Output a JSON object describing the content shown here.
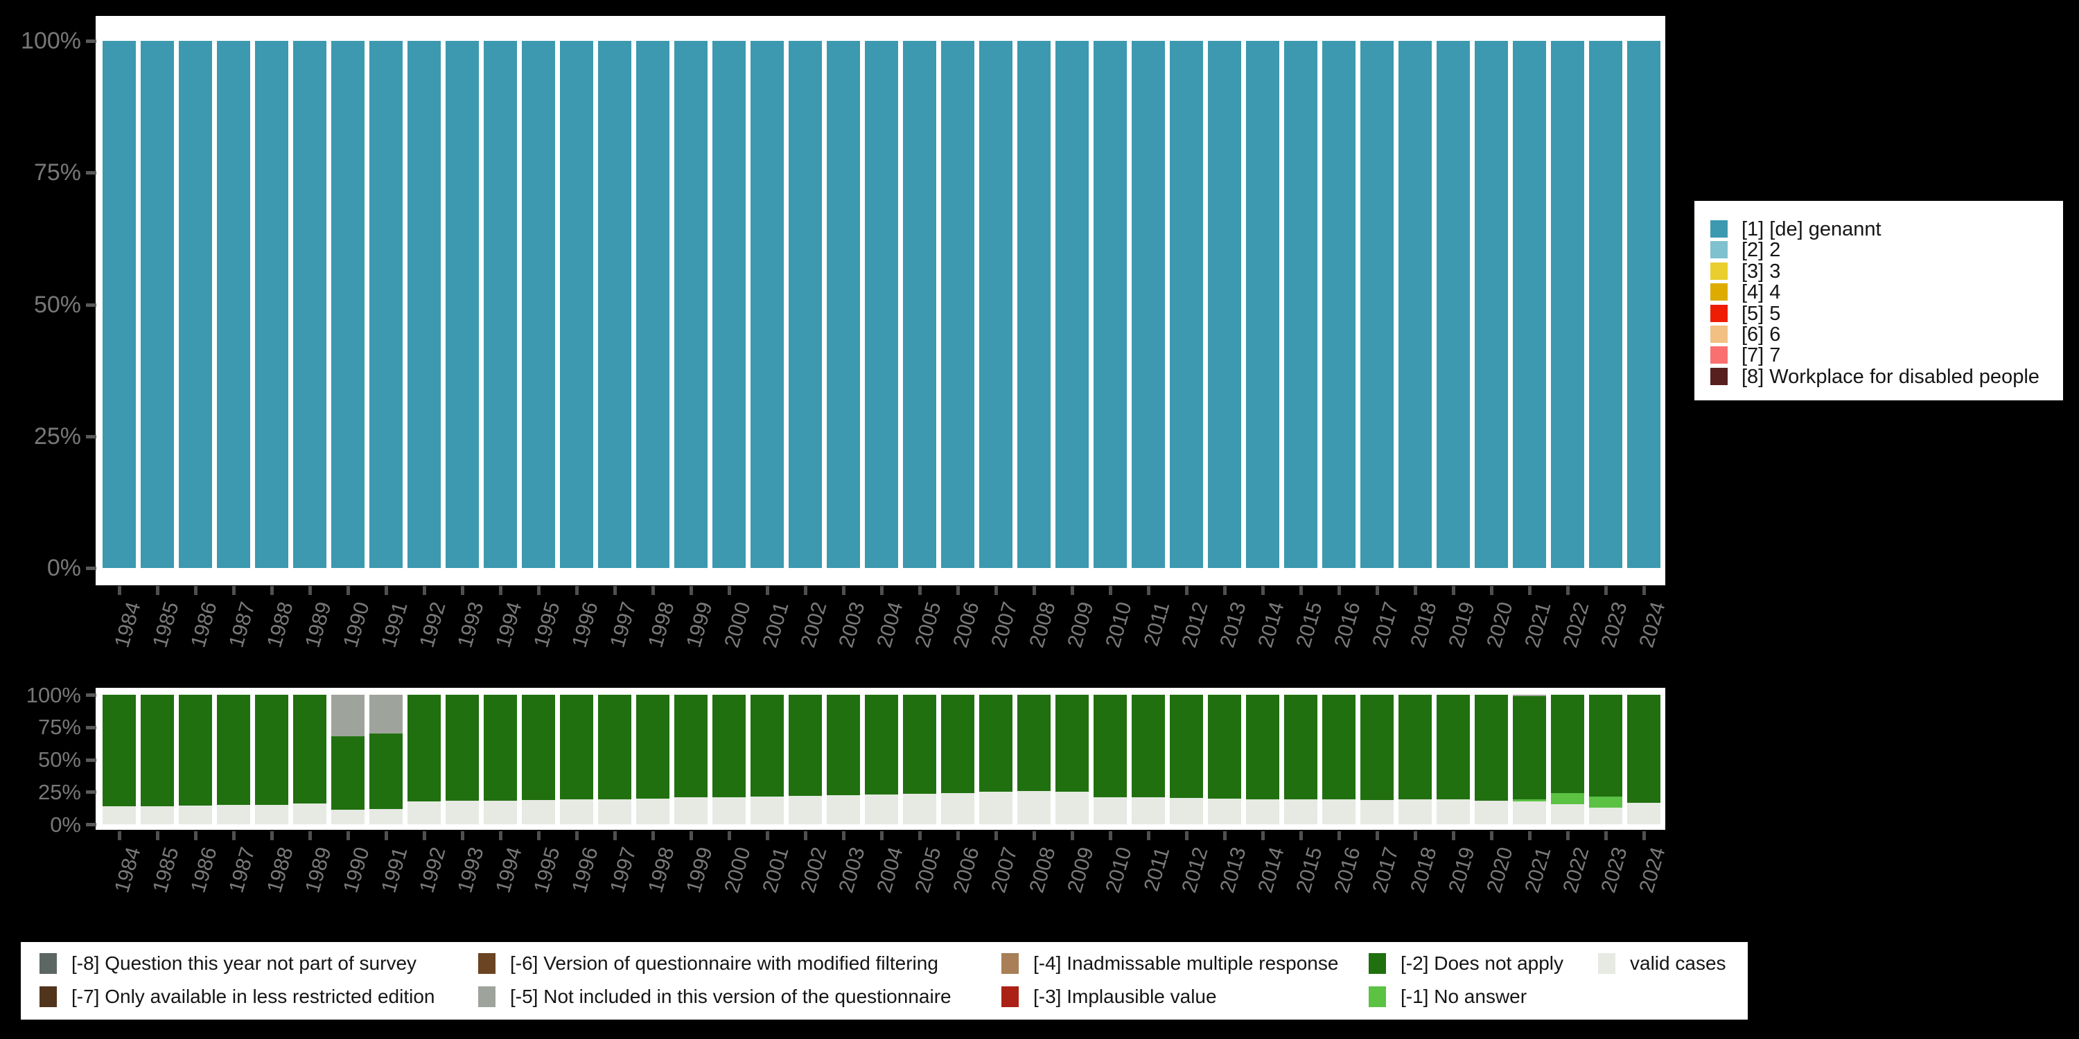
{
  "figure": {
    "background_color": "#000000",
    "plot_background_color": "#ffffff",
    "axis_text_color": "#7a7a7a"
  },
  "years": [
    "1984",
    "1985",
    "1986",
    "1987",
    "1988",
    "1989",
    "1990",
    "1991",
    "1992",
    "1993",
    "1994",
    "1995",
    "1996",
    "1997",
    "1998",
    "1999",
    "2000",
    "2001",
    "2002",
    "2003",
    "2004",
    "2005",
    "2006",
    "2007",
    "2008",
    "2009",
    "2010",
    "2011",
    "2012",
    "2013",
    "2014",
    "2015",
    "2016",
    "2017",
    "2018",
    "2019",
    "2020",
    "2021",
    "2022",
    "2023",
    "2024"
  ],
  "y_axis_ticks": [
    "0%",
    "25%",
    "50%",
    "75%",
    "100%"
  ],
  "legend_values": {
    "items": [
      {
        "label": "[1] [de] genannt",
        "color": "#3C99AF"
      },
      {
        "label": "[2] 2",
        "color": "#7FC1CF"
      },
      {
        "label": "[3] 3",
        "color": "#E9CE2D"
      },
      {
        "label": "[4] 4",
        "color": "#DCAC00"
      },
      {
        "label": "[5] 5",
        "color": "#EE1D04"
      },
      {
        "label": "[6] 6",
        "color": "#F2C083"
      },
      {
        "label": "[7] 7",
        "color": "#FA6F6F"
      },
      {
        "label": "[8] Workplace for disabled people",
        "color": "#571F1D"
      }
    ]
  },
  "legend_missing": {
    "items": [
      {
        "label": "[-8] Question this year not part of survey",
        "color": "#5C6763",
        "col": 0,
        "row": 0
      },
      {
        "label": "[-7] Only available in less restricted edition",
        "color": "#50341B",
        "col": 0,
        "row": 1
      },
      {
        "label": "[-6] Version of questionnaire with modified filtering",
        "color": "#6B4423",
        "col": 1,
        "row": 0
      },
      {
        "label": "[-5] Not included in this version of the questionnaire",
        "color": "#9EA49B",
        "col": 1,
        "row": 1
      },
      {
        "label": "[-4] Inadmissable multiple response",
        "color": "#A87F56",
        "col": 2,
        "row": 0
      },
      {
        "label": "[-3] Implausible value",
        "color": "#AB2115",
        "col": 2,
        "row": 1
      },
      {
        "label": "[-2] Does not apply",
        "color": "#20700F",
        "col": 3,
        "row": 0
      },
      {
        "label": "[-1] No answer",
        "color": "#5BC244",
        "col": 3,
        "row": 1
      },
      {
        "label": "valid cases",
        "color": "#E6EAE3",
        "col": 4,
        "row": 0
      }
    ]
  },
  "chart_data": [
    {
      "type": "bar",
      "subtype": "stacked-100pct",
      "title": "Distribution of valid values per year",
      "xlabel": "",
      "ylabel": "",
      "ylim": [
        0,
        100
      ],
      "y_ticks": [
        "0%",
        "25%",
        "50%",
        "75%",
        "100%"
      ],
      "grid": false,
      "legend_position": "right",
      "categories": [
        "1984",
        "1985",
        "1986",
        "1987",
        "1988",
        "1989",
        "1990",
        "1991",
        "1992",
        "1993",
        "1994",
        "1995",
        "1996",
        "1997",
        "1998",
        "1999",
        "2000",
        "2001",
        "2002",
        "2003",
        "2004",
        "2005",
        "2006",
        "2007",
        "2008",
        "2009",
        "2010",
        "2011",
        "2012",
        "2013",
        "2014",
        "2015",
        "2016",
        "2017",
        "2018",
        "2019",
        "2020",
        "2021",
        "2022",
        "2023",
        "2024"
      ],
      "series": [
        {
          "name": "[1] [de] genannt",
          "color": "#3C99AF",
          "values": [
            100,
            100,
            100,
            100,
            100,
            100,
            100,
            100,
            100,
            100,
            100,
            100,
            100,
            100,
            100,
            100,
            100,
            100,
            100,
            100,
            100,
            100,
            100,
            100,
            100,
            100,
            100,
            100,
            100,
            100,
            100,
            100,
            100,
            100,
            100,
            100,
            100,
            100,
            100,
            100,
            100
          ]
        }
      ]
    },
    {
      "type": "bar",
      "subtype": "stacked-100pct",
      "title": "Distribution of missing values and valid cases per year",
      "xlabel": "",
      "ylabel": "",
      "ylim": [
        0,
        100
      ],
      "y_ticks": [
        "0%",
        "25%",
        "50%",
        "75%",
        "100%"
      ],
      "grid": false,
      "legend_position": "bottom",
      "stack_order": "bottom-to-top",
      "categories": [
        "1984",
        "1985",
        "1986",
        "1987",
        "1988",
        "1989",
        "1990",
        "1991",
        "1992",
        "1993",
        "1994",
        "1995",
        "1996",
        "1997",
        "1998",
        "1999",
        "2000",
        "2001",
        "2002",
        "2003",
        "2004",
        "2005",
        "2006",
        "2007",
        "2008",
        "2009",
        "2010",
        "2011",
        "2012",
        "2013",
        "2014",
        "2015",
        "2016",
        "2017",
        "2018",
        "2019",
        "2020",
        "2021",
        "2022",
        "2023",
        "2024"
      ],
      "series": [
        {
          "name": "valid cases",
          "color": "#E6EAE3",
          "values": [
            14,
            14,
            14.5,
            15,
            15,
            16,
            11,
            12,
            17.5,
            18,
            18,
            18.5,
            19,
            19.5,
            20,
            21,
            21,
            21.5,
            22,
            22.5,
            23,
            23.5,
            24,
            25,
            25.5,
            25,
            21,
            21,
            20.5,
            20,
            19.5,
            19,
            19,
            18.5,
            19,
            19,
            18,
            17.5,
            15.5,
            13,
            16.5
          ]
        },
        {
          "name": "[-1] No answer",
          "color": "#5BC244",
          "values": [
            0,
            0,
            0,
            0,
            0,
            0,
            0,
            0,
            0,
            0,
            0,
            0,
            0,
            0,
            0,
            0,
            0,
            0,
            0,
            0,
            0,
            0,
            0,
            0,
            0,
            0,
            0,
            0,
            0,
            0,
            0,
            0,
            0,
            0,
            0,
            0,
            0,
            1.5,
            8.5,
            8.5,
            0
          ]
        },
        {
          "name": "[-2] Does not apply",
          "color": "#20700F",
          "values": [
            86,
            86,
            85.5,
            85,
            85,
            84,
            57,
            58,
            82.5,
            82,
            82,
            81.5,
            81,
            80.5,
            80,
            79,
            79,
            78.5,
            78,
            77.5,
            77,
            76.5,
            76,
            75,
            74.5,
            75,
            79,
            79,
            79.5,
            80,
            80.5,
            81,
            81,
            81.5,
            81,
            81,
            82,
            79.8,
            76,
            78.5,
            83.5
          ]
        },
        {
          "name": "[-5] Not included in this version of the questionnaire",
          "color": "#9EA49B",
          "values": [
            0,
            0,
            0,
            0,
            0,
            0,
            32,
            30,
            0,
            0,
            0,
            0,
            0,
            0,
            0,
            0,
            0,
            0,
            0,
            0,
            0,
            0,
            0,
            0,
            0,
            0,
            0,
            0,
            0,
            0,
            0,
            0,
            0,
            0,
            0,
            0,
            0,
            1.2,
            0,
            0,
            0
          ]
        }
      ]
    }
  ]
}
